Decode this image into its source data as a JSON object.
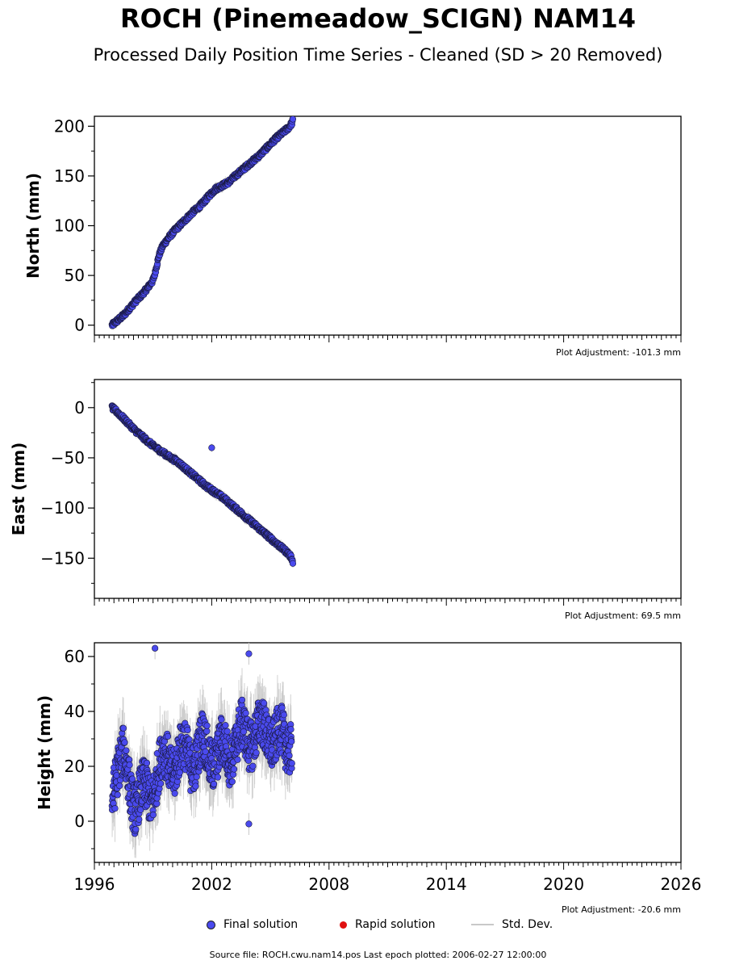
{
  "header": {
    "title": "ROCH (Pinemeadow_SCIGN) NAM14",
    "subtitle": "Processed Daily Position Time Series - Cleaned (SD > 20 Removed)"
  },
  "legend": {
    "final": "Final solution",
    "rapid": "Rapid solution",
    "std": "Std. Dev."
  },
  "footer": {
    "source": "Source file: ROCH.cwu.nam14.pos  Last epoch plotted: 2006-02-27 12:00:00"
  },
  "colors": {
    "final": "#4a4aee",
    "rapid": "#e01010",
    "std": "#c8c8c8"
  },
  "chart_data": [
    {
      "type": "scatter",
      "ylabel": "North (mm)",
      "adjustment": "Plot Adjustment: -101.3 mm",
      "xlim": [
        1996,
        2026
      ],
      "ylim": [
        -10,
        210
      ],
      "yticks": [
        0,
        50,
        100,
        150,
        200
      ],
      "xticks": [],
      "series": [
        {
          "x": [
            1996.9,
            1997.2,
            1997.5,
            1997.8,
            1998.1,
            1998.4,
            1998.7,
            1999.0,
            1999.1,
            1999.3,
            1999.5,
            1999.8,
            2000.1,
            2000.4,
            2000.7,
            2001.0,
            2001.3,
            2001.6,
            2001.9,
            2002.2,
            2002.5,
            2002.8,
            2003.0,
            2003.2,
            2003.5,
            2003.8,
            2004.1,
            2004.4,
            2004.7,
            2005.0,
            2005.3,
            2005.6,
            2005.9,
            2006.1,
            2006.15
          ],
          "y": [
            0,
            5,
            10,
            17,
            24,
            30,
            37,
            45,
            52,
            70,
            80,
            88,
            95,
            101,
            107,
            113,
            118,
            124,
            131,
            137,
            140,
            143,
            146,
            150,
            155,
            160,
            165,
            170,
            176,
            182,
            188,
            193,
            198,
            203,
            206
          ]
        }
      ]
    },
    {
      "type": "scatter",
      "ylabel": "East (mm)",
      "adjustment": "Plot Adjustment: 69.5 mm",
      "xlim": [
        1996,
        2026
      ],
      "ylim": [
        -190,
        28
      ],
      "yticks": [
        0,
        -50,
        -100,
        -150
      ],
      "xticks": [],
      "series": [
        {
          "x": [
            1996.9,
            1997.2,
            1997.5,
            1997.8,
            1998.1,
            1998.4,
            1998.7,
            1999.0,
            1999.3,
            1999.6,
            1999.9,
            2000.2,
            2000.5,
            2000.8,
            2001.1,
            2001.4,
            2001.7,
            2002.0,
            2002.3,
            2002.6,
            2002.9,
            2003.2,
            2003.5,
            2003.8,
            2004.1,
            2004.4,
            2004.7,
            2005.0,
            2005.3,
            2005.6,
            2005.9,
            2006.1,
            2006.15
          ],
          "y": [
            0,
            -5,
            -11,
            -17,
            -23,
            -28,
            -33,
            -38,
            -42,
            -46,
            -50,
            -53,
            -58,
            -63,
            -68,
            -73,
            -78,
            -82,
            -86,
            -90,
            -95,
            -100,
            -105,
            -110,
            -115,
            -120,
            -125,
            -130,
            -135,
            -140,
            -145,
            -150,
            -155
          ]
        }
      ],
      "outliers": [
        {
          "x": 2002.0,
          "y": -40
        }
      ]
    },
    {
      "type": "scatter",
      "ylabel": "Height (mm)",
      "adjustment": "Plot Adjustment: -20.6 mm",
      "xlim": [
        1996,
        2026
      ],
      "ylim": [
        -15,
        65
      ],
      "yticks": [
        0,
        20,
        40,
        60
      ],
      "xticks": [
        "1996",
        "2002",
        "2008",
        "2014",
        "2020",
        "2026"
      ],
      "series": [
        {
          "x": [
            1996.9,
            1997.1,
            1997.3,
            1997.5,
            1997.7,
            1997.9,
            1998.1,
            1998.3,
            1998.5,
            1998.7,
            1998.9,
            1999.1,
            1999.3,
            1999.5,
            1999.7,
            1999.9,
            2000.1,
            2000.3,
            2000.5,
            2000.7,
            2000.9,
            2001.1,
            2001.3,
            2001.5,
            2001.7,
            2001.9,
            2002.1,
            2002.3,
            2002.5,
            2002.7,
            2002.9,
            2003.1,
            2003.3,
            2003.5,
            2003.7,
            2003.9,
            2004.1,
            2004.3,
            2004.5,
            2004.7,
            2004.9,
            2005.1,
            2005.3,
            2005.5,
            2005.7,
            2005.9,
            2006.1
          ],
          "y": [
            8,
            15,
            22,
            26,
            18,
            8,
            3,
            10,
            14,
            12,
            6,
            11,
            20,
            26,
            24,
            18,
            17,
            24,
            29,
            27,
            20,
            19,
            25,
            32,
            28,
            21,
            20,
            24,
            30,
            27,
            22,
            23,
            30,
            36,
            33,
            27,
            28,
            33,
            38,
            34,
            29,
            27,
            31,
            35,
            30,
            25,
            27
          ]
        }
      ],
      "outliers": [
        {
          "x": 1999.1,
          "y": 63
        },
        {
          "x": 2003.9,
          "y": 61
        },
        {
          "x": 2003.9,
          "y": -1
        }
      ]
    }
  ]
}
